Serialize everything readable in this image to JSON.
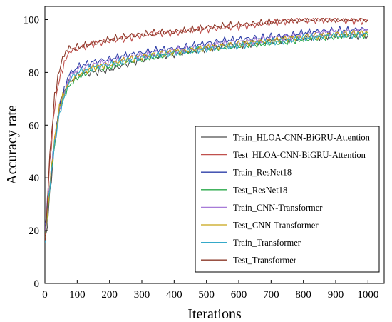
{
  "chart_data": {
    "type": "line",
    "xlabel": "Iterations",
    "ylabel": "Accuracy rate",
    "xlim": [
      0,
      1050
    ],
    "ylim": [
      0,
      105
    ],
    "xticks": [
      0,
      100,
      200,
      300,
      400,
      500,
      600,
      700,
      800,
      900,
      1000
    ],
    "yticks": [
      0,
      20,
      40,
      60,
      80,
      100
    ],
    "grid": false,
    "legend_position": "center-right",
    "series": [
      {
        "name": "Train_HLOA-CNN-BiGRU-Attention",
        "color": "#4d4d4d",
        "x": [
          1,
          15,
          30,
          45,
          60,
          75,
          100,
          150,
          200,
          250,
          300,
          350,
          400,
          450,
          500,
          550,
          600,
          650,
          700,
          750,
          800,
          850,
          900,
          950,
          1000
        ],
        "y": [
          15,
          33,
          52,
          66,
          72,
          76,
          79,
          80,
          81,
          83,
          85,
          86,
          87,
          88,
          89,
          90,
          90.5,
          91,
          92,
          92.5,
          93,
          93.5,
          94,
          94,
          94
        ]
      },
      {
        "name": "Test_HLOA-CNN-BiGRU-Attention",
        "color": "#c0504d",
        "x": [
          1,
          15,
          30,
          45,
          60,
          75,
          100,
          150,
          200,
          250,
          300,
          350,
          400,
          450,
          500,
          550,
          600,
          650,
          700,
          750,
          800,
          850,
          900,
          950,
          1000
        ],
        "y": [
          18,
          45,
          67,
          78,
          84,
          88,
          89,
          91,
          92,
          93,
          94,
          95,
          95,
          96,
          96.5,
          97,
          97.5,
          98,
          99,
          99.5,
          100,
          100,
          100,
          99.5,
          99.5
        ]
      },
      {
        "name": "Train_ResNet18",
        "color": "#2e3fa8",
        "x": [
          1,
          15,
          30,
          45,
          60,
          75,
          100,
          150,
          200,
          250,
          300,
          350,
          400,
          450,
          500,
          550,
          600,
          650,
          700,
          750,
          800,
          850,
          900,
          950,
          1000
        ],
        "y": [
          20,
          38,
          55,
          68,
          74,
          79,
          82,
          84,
          85,
          86.5,
          87.5,
          88.5,
          89,
          90,
          91,
          92,
          92.5,
          93,
          93.5,
          94,
          95,
          95.5,
          96,
          96,
          96.5
        ]
      },
      {
        "name": "Test_ResNet18",
        "color": "#2aa84a",
        "x": [
          1,
          15,
          30,
          45,
          60,
          75,
          100,
          150,
          200,
          250,
          300,
          350,
          400,
          450,
          500,
          550,
          600,
          650,
          700,
          750,
          800,
          850,
          900,
          950,
          1000
        ],
        "y": [
          18,
          35,
          52,
          64,
          70,
          75,
          78,
          81,
          82,
          84,
          85,
          86,
          87,
          88,
          89,
          89.5,
          90,
          90.5,
          91,
          91.5,
          92.5,
          93,
          93.5,
          94,
          94
        ]
      },
      {
        "name": "Train_CNN-Transformer",
        "color": "#a77bd8",
        "x": [
          1,
          15,
          30,
          45,
          60,
          75,
          100,
          150,
          200,
          250,
          300,
          350,
          400,
          450,
          500,
          550,
          600,
          650,
          700,
          750,
          800,
          850,
          900,
          950,
          1000
        ],
        "y": [
          21,
          40,
          56,
          67,
          73,
          78,
          81,
          83,
          84,
          85.5,
          86.5,
          87.5,
          88.5,
          89,
          90,
          91,
          91.5,
          92,
          93,
          93.5,
          94,
          95,
          95.5,
          95.5,
          96
        ]
      },
      {
        "name": "Test_CNN-Transformer",
        "color": "#c8a415",
        "x": [
          1,
          15,
          30,
          45,
          60,
          75,
          100,
          150,
          200,
          250,
          300,
          350,
          400,
          450,
          500,
          550,
          600,
          650,
          700,
          750,
          800,
          850,
          900,
          950,
          1000
        ],
        "y": [
          17,
          36,
          53,
          65,
          71,
          76,
          79,
          82,
          83,
          85,
          86,
          87,
          88,
          88.5,
          89.5,
          90,
          91,
          91.5,
          92,
          93,
          93.5,
          94,
          94.5,
          95,
          95
        ]
      },
      {
        "name": "Train_Transformer",
        "color": "#35a9c9",
        "x": [
          1,
          15,
          30,
          45,
          60,
          75,
          100,
          150,
          200,
          250,
          300,
          350,
          400,
          450,
          500,
          550,
          600,
          650,
          700,
          750,
          800,
          850,
          900,
          950,
          1000
        ],
        "y": [
          19,
          37,
          54,
          66,
          72,
          77,
          80,
          82,
          83,
          84.5,
          85.5,
          86.5,
          87.5,
          88,
          89,
          89.5,
          90,
          91,
          91.5,
          92,
          93,
          93.5,
          94,
          94,
          94.5
        ]
      },
      {
        "name": "Test_Transformer",
        "color": "#8b3a2a",
        "x": [
          1,
          15,
          30,
          45,
          60,
          75,
          100,
          150,
          200,
          250,
          300,
          350,
          400,
          450,
          500,
          550,
          600,
          650,
          700,
          750,
          800,
          850,
          900,
          950,
          1000
        ],
        "y": [
          16,
          48,
          70,
          80,
          86,
          89,
          89.5,
          91,
          92.5,
          93.5,
          94.5,
          95,
          95.5,
          96,
          97,
          97.5,
          98,
          98.5,
          99,
          99.5,
          100,
          100,
          100,
          100,
          100
        ]
      }
    ]
  }
}
